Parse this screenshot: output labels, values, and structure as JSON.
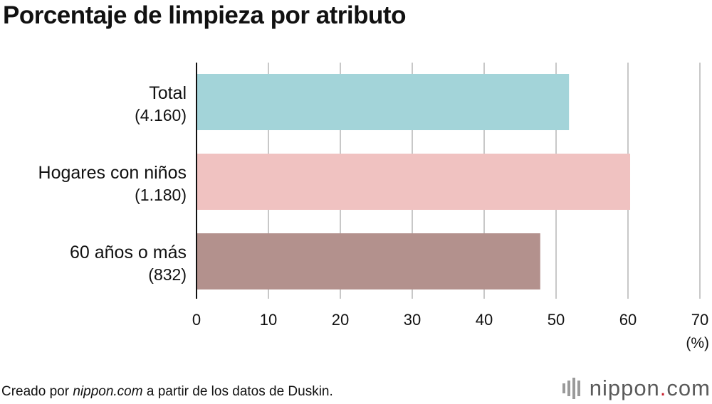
{
  "chart_data": {
    "type": "bar",
    "orientation": "horizontal",
    "title": "Porcentaje de limpieza por atributo",
    "categories": [
      {
        "label": "Total",
        "sub": "(4.160)"
      },
      {
        "label": "Hogares con niños",
        "sub": "(1.180)"
      },
      {
        "label": "60 años o más",
        "sub": "(832)"
      }
    ],
    "values": [
      51.8,
      60.3,
      47.8
    ],
    "colors": [
      "#a3d4d9",
      "#f0c2c1",
      "#b3918d"
    ],
    "xlim": [
      0,
      70
    ],
    "ticks": [
      "0",
      "10",
      "20",
      "30",
      "40",
      "50",
      "60",
      "70"
    ],
    "unit": "(%)",
    "grid": true
  },
  "footer": {
    "prefix": "Creado por ",
    "source_italic": "nippon.com",
    "suffix": " a partir de los datos de Duskin."
  },
  "logo": {
    "name": "nippon",
    "dot": ".",
    "domain": "com",
    "bar_color": "#9a9a9a",
    "dot_color": "#c8202f"
  }
}
